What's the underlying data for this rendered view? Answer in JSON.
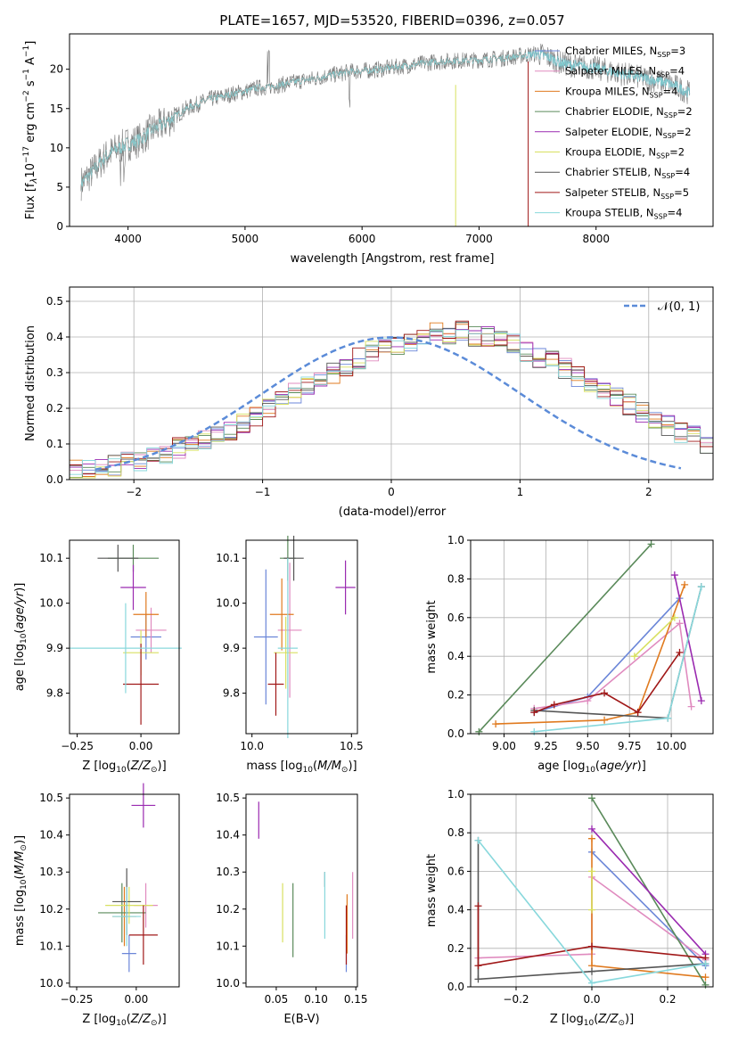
{
  "title": "PLATE=1657, MJD=53520, FIBERID=0396, z=0.057",
  "models": [
    {
      "name": "Chabrier MILES",
      "n": "3",
      "color": "#6b86d8"
    },
    {
      "name": "Salpeter MILES",
      "n": "4",
      "color": "#e08bbf"
    },
    {
      "name": "Kroupa MILES",
      "n": "4",
      "color": "#e07a1f"
    },
    {
      "name": "Chabrier ELODIE",
      "n": "2",
      "color": "#5a8a5a"
    },
    {
      "name": "Salpeter ELODIE",
      "n": "2",
      "color": "#9a2ab0"
    },
    {
      "name": "Kroupa ELODIE",
      "n": "2",
      "color": "#d8e060"
    },
    {
      "name": "Chabrier STELIB",
      "n": "4",
      "color": "#555555"
    },
    {
      "name": "Salpeter STELIB",
      "n": "5",
      "color": "#a01818"
    },
    {
      "name": "Kroupa STELIB",
      "n": "4",
      "color": "#88d8dc"
    }
  ],
  "legend_suffix": "N",
  "legend_sub": "SSP",
  "chart_data": [
    {
      "type": "line",
      "xlabel": "wavelength [Angstrom, rest frame]",
      "ylabel": "Flux [f",
      "ylabel_mid": "10",
      "ylabel_exp": "−17",
      "ylabel_tail": " erg cm",
      "ylabel_exp2": "−2",
      "ylabel_tail2": " s",
      "ylabel_exp3": "−1",
      "ylabel_tail3": " A",
      "ylabel_exp4": "−1",
      "ylabel_end": "]",
      "xlim": [
        3500,
        9000
      ],
      "ylim": [
        0,
        24.5
      ],
      "xticks": [
        4000,
        5000,
        6000,
        7000,
        8000
      ],
      "yticks": [
        0,
        5,
        10,
        15,
        20
      ],
      "continuum_x": [
        3600,
        3700,
        3800,
        3900,
        4000,
        4100,
        4200,
        4300,
        4400,
        4500,
        4600,
        4700,
        4800,
        4900,
        5000,
        5100,
        5200,
        5300,
        5400,
        5500,
        5600,
        5700,
        5800,
        5900,
        6000,
        6100,
        6200,
        6300,
        6400,
        6500,
        6600,
        6700,
        6800,
        6900,
        7000,
        7100,
        7200,
        7300,
        7400,
        7500,
        7600,
        7700,
        7800,
        7900,
        8000,
        8100,
        8200,
        8300,
        8400,
        8500,
        8600,
        8700,
        8800
      ],
      "continuum_y": [
        5.5,
        7.0,
        8.8,
        9.8,
        10.5,
        11.0,
        12.2,
        13.0,
        14.0,
        15.0,
        15.6,
        16.2,
        16.5,
        16.9,
        17.2,
        17.6,
        17.8,
        18.0,
        18.3,
        18.6,
        18.8,
        19.2,
        19.4,
        19.7,
        19.8,
        19.9,
        20.1,
        20.3,
        20.5,
        20.7,
        20.9,
        21.0,
        21.1,
        21.1,
        21.2,
        21.3,
        21.4,
        21.6,
        21.8,
        22.0,
        21.5,
        20.8,
        20.5,
        20.3,
        20.1,
        19.8,
        19.5,
        19.2,
        18.9,
        18.6,
        18.3,
        17.7,
        17.0
      ]
    },
    {
      "type": "bar",
      "xlabel": "(data-model)/error",
      "ylabel": "Normed distribution",
      "legend": "𝒩(0, 1)",
      "xlim": [
        -2.5,
        2.5
      ],
      "ylim": [
        0,
        0.54
      ],
      "xticks": [
        -2,
        -1,
        0,
        1,
        2
      ],
      "yticks": [
        0.0,
        0.1,
        0.2,
        0.3,
        0.4,
        0.5
      ],
      "bin_edges_start": -2.5,
      "bin_width": 0.1,
      "hist": [
        0.03,
        0.03,
        0.035,
        0.04,
        0.05,
        0.05,
        0.06,
        0.07,
        0.09,
        0.1,
        0.11,
        0.13,
        0.14,
        0.16,
        0.18,
        0.2,
        0.22,
        0.24,
        0.26,
        0.28,
        0.3,
        0.32,
        0.34,
        0.36,
        0.37,
        0.38,
        0.39,
        0.4,
        0.41,
        0.41,
        0.42,
        0.4,
        0.4,
        0.39,
        0.38,
        0.36,
        0.34,
        0.33,
        0.31,
        0.29,
        0.27,
        0.25,
        0.23,
        0.21,
        0.19,
        0.17,
        0.15,
        0.13,
        0.12,
        0.1
      ]
    },
    {
      "type": "scatter",
      "xlabel": "Z [log10(Z/Z⊙)]",
      "ylabel": "age  [log10(age/yr)]",
      "xlim": [
        -0.28,
        0.15
      ],
      "ylim": [
        9.71,
        10.14
      ],
      "xticks": [
        -0.25,
        0.0,
        0.25
      ],
      "xticklabels": [
        "−0.25",
        "0.00",
        "0.25"
      ],
      "yticks": [
        9.8,
        9.9,
        10.0,
        10.1
      ],
      "points": [
        {
          "x": 0.02,
          "y": 9.925,
          "xerr": 0.06,
          "yerr": 0.05
        },
        {
          "x": 0.04,
          "y": 9.94,
          "xerr": 0.06,
          "yerr": 0.05
        },
        {
          "x": 0.02,
          "y": 9.975,
          "xerr": 0.05,
          "yerr": 0.05
        },
        {
          "x": -0.03,
          "y": 10.1,
          "xerr": 0.1,
          "yerr": 0.03
        },
        {
          "x": -0.03,
          "y": 10.035,
          "xerr": 0.05,
          "yerr": 0.05
        },
        {
          "x": 0.0,
          "y": 9.89,
          "xerr": 0.07,
          "yerr": 0.05
        },
        {
          "x": -0.09,
          "y": 10.1,
          "xerr": 0.08,
          "yerr": 0.03
        },
        {
          "x": 0.0,
          "y": 9.82,
          "xerr": 0.07,
          "yerr": 0.09
        },
        {
          "x": -0.06,
          "y": 9.9,
          "xerr": 0.22,
          "yerr": 0.1
        }
      ]
    },
    {
      "type": "scatter",
      "xlabel": "mass [log10(M/M⊙)]",
      "ylabel": "",
      "xlim": [
        9.97,
        10.53
      ],
      "ylim": [
        9.71,
        10.14
      ],
      "xticks": [
        10.0,
        10.5
      ],
      "xticklabels": [
        "10.0",
        "10.5"
      ],
      "yticks": [
        9.8,
        9.9,
        10.0,
        10.1
      ],
      "points": [
        {
          "x": 10.07,
          "y": 9.925,
          "xerr": 0.06,
          "yerr": 0.15
        },
        {
          "x": 10.19,
          "y": 9.94,
          "xerr": 0.06,
          "yerr": 0.15
        },
        {
          "x": 10.15,
          "y": 9.975,
          "xerr": 0.06,
          "yerr": 0.08
        },
        {
          "x": 10.18,
          "y": 10.1,
          "xerr": 0.04,
          "yerr": 0.05
        },
        {
          "x": 10.47,
          "y": 10.035,
          "xerr": 0.05,
          "yerr": 0.06
        },
        {
          "x": 10.17,
          "y": 9.89,
          "xerr": 0.06,
          "yerr": 0.08
        },
        {
          "x": 10.21,
          "y": 10.1,
          "xerr": 0.05,
          "yerr": 0.05
        },
        {
          "x": 10.12,
          "y": 9.82,
          "xerr": 0.04,
          "yerr": 0.07
        },
        {
          "x": 10.18,
          "y": 9.9,
          "xerr": 0.05,
          "yerr": 0.2
        }
      ]
    },
    {
      "type": "line",
      "xlabel": "age  [log10(age/yr)]",
      "ylabel": "mass weight",
      "xlim": [
        8.8,
        10.25
      ],
      "ylim": [
        0.0,
        1.0
      ],
      "xticks": [
        9.0,
        9.25,
        9.5,
        9.75,
        10.0
      ],
      "xticklabels": [
        "9.00",
        "9.25",
        "9.50",
        "9.75",
        "10.00"
      ],
      "yticks": [
        0.0,
        0.2,
        0.4,
        0.6,
        0.8,
        1.0
      ],
      "series": [
        {
          "x": [
            9.18,
            9.5,
            10.05
          ],
          "y": [
            0.11,
            0.19,
            0.7
          ]
        },
        {
          "x": [
            9.18,
            9.5,
            10.05,
            10.12
          ],
          "y": [
            0.13,
            0.17,
            0.57,
            0.14
          ]
        },
        {
          "x": [
            8.95,
            9.6,
            9.8,
            10.08
          ],
          "y": [
            0.05,
            0.07,
            0.11,
            0.77
          ]
        },
        {
          "x": [
            8.85,
            9.88
          ],
          "y": [
            0.01,
            0.98
          ]
        },
        {
          "x": [
            10.02,
            10.18
          ],
          "y": [
            0.82,
            0.17
          ]
        },
        {
          "x": [
            9.78,
            10.02
          ],
          "y": [
            0.4,
            0.6
          ]
        },
        {
          "x": [
            9.18,
            9.98,
            10.18
          ],
          "y": [
            0.12,
            0.08,
            0.76
          ]
        },
        {
          "x": [
            9.18,
            9.3,
            9.6,
            9.8,
            10.05
          ],
          "y": [
            0.11,
            0.15,
            0.21,
            0.11,
            0.42
          ]
        },
        {
          "x": [
            9.18,
            9.98,
            10.18
          ],
          "y": [
            0.01,
            0.08,
            0.76
          ]
        }
      ]
    },
    {
      "type": "scatter",
      "xlabel": "Z [log10(Z/Z⊙)]",
      "ylabel": "mass [log10(M/M⊙)]",
      "xlim": [
        -0.28,
        0.18
      ],
      "ylim": [
        9.99,
        10.51
      ],
      "xticks": [
        -0.25,
        0.0
      ],
      "xticklabels": [
        "−0.25",
        "0.00"
      ],
      "yticks": [
        10.0,
        10.1,
        10.2,
        10.3,
        10.4,
        10.5
      ],
      "points": [
        {
          "x": -0.03,
          "y": 10.08,
          "xerr": 0.03,
          "yerr": 0.05
        },
        {
          "x": 0.04,
          "y": 10.21,
          "xerr": 0.05,
          "yerr": 0.06
        },
        {
          "x": -0.05,
          "y": 10.18,
          "xerr": 0.05,
          "yerr": 0.08
        },
        {
          "x": -0.06,
          "y": 10.19,
          "xerr": 0.1,
          "yerr": 0.08
        },
        {
          "x": 0.03,
          "y": 10.48,
          "xerr": 0.05,
          "yerr": 0.06
        },
        {
          "x": -0.03,
          "y": 10.21,
          "xerr": 0.1,
          "yerr": 0.05
        },
        {
          "x": -0.04,
          "y": 10.22,
          "xerr": 0.06,
          "yerr": 0.09
        },
        {
          "x": 0.03,
          "y": 10.13,
          "xerr": 0.06,
          "yerr": 0.08
        },
        {
          "x": -0.04,
          "y": 10.18,
          "xerr": 0.06,
          "yerr": 0.08
        }
      ]
    },
    {
      "type": "scatter",
      "xlabel": "E(B-V)",
      "ylabel": "",
      "xlim": [
        0.012,
        0.152
      ],
      "ylim": [
        9.99,
        10.51
      ],
      "xticks": [
        0.05,
        0.1,
        0.15
      ],
      "xticklabels": [
        "0.05",
        "0.10",
        "0.15"
      ],
      "yticks": [
        10.0,
        10.1,
        10.2,
        10.3,
        10.4,
        10.5
      ],
      "points": [
        {
          "x": 0.138,
          "y": 10.08,
          "yerr": 0.05
        },
        {
          "x": 0.146,
          "y": 10.21,
          "yerr": 0.09
        },
        {
          "x": 0.139,
          "y": 10.16,
          "yerr": 0.08
        },
        {
          "x": 0.071,
          "y": 10.17,
          "yerr": 0.1
        },
        {
          "x": 0.028,
          "y": 10.44,
          "yerr": 0.05
        },
        {
          "x": 0.058,
          "y": 10.19,
          "yerr": 0.08
        },
        {
          "x": 0.111,
          "y": 10.28,
          "yerr": 0.02
        },
        {
          "x": 0.138,
          "y": 10.13,
          "yerr": 0.08
        },
        {
          "x": 0.111,
          "y": 10.21,
          "yerr": 0.09
        }
      ]
    },
    {
      "type": "line",
      "xlabel": "Z [log10(Z/Z⊙)]",
      "ylabel": "mass weight",
      "xlim": [
        -0.32,
        0.32
      ],
      "ylim": [
        0.0,
        1.0
      ],
      "xticks": [
        -0.2,
        0.0,
        0.2
      ],
      "xticklabels": [
        "−0.2",
        "0.0",
        "0.2"
      ],
      "yticks": [
        0.0,
        0.2,
        0.4,
        0.6,
        0.8,
        1.0
      ],
      "series": [
        {
          "x": [
            0.0,
            0.3
          ],
          "y": [
            0.7,
            0.11
          ]
        },
        {
          "x": [
            -0.3,
            0.0,
            0.0,
            0.3
          ],
          "y": [
            0.15,
            0.17,
            0.57,
            0.14
          ]
        },
        {
          "x": [
            0.0,
            0.0,
            0.3
          ],
          "y": [
            0.77,
            0.11,
            0.05
          ]
        },
        {
          "x": [
            0.0,
            0.3
          ],
          "y": [
            0.98,
            0.01
          ]
        },
        {
          "x": [
            0.0,
            0.3
          ],
          "y": [
            0.82,
            0.17
          ]
        },
        {
          "x": [
            0.0,
            0.0
          ],
          "y": [
            0.6,
            0.4
          ]
        },
        {
          "x": [
            -0.3,
            -0.3,
            0.0,
            0.3
          ],
          "y": [
            0.76,
            0.04,
            0.08,
            0.12
          ]
        },
        {
          "x": [
            -0.3,
            -0.3,
            0.0,
            0.3
          ],
          "y": [
            0.42,
            0.11,
            0.21,
            0.15
          ]
        },
        {
          "x": [
            -0.3,
            0.0,
            0.3
          ],
          "y": [
            0.76,
            0.02,
            0.12
          ]
        }
      ]
    }
  ]
}
